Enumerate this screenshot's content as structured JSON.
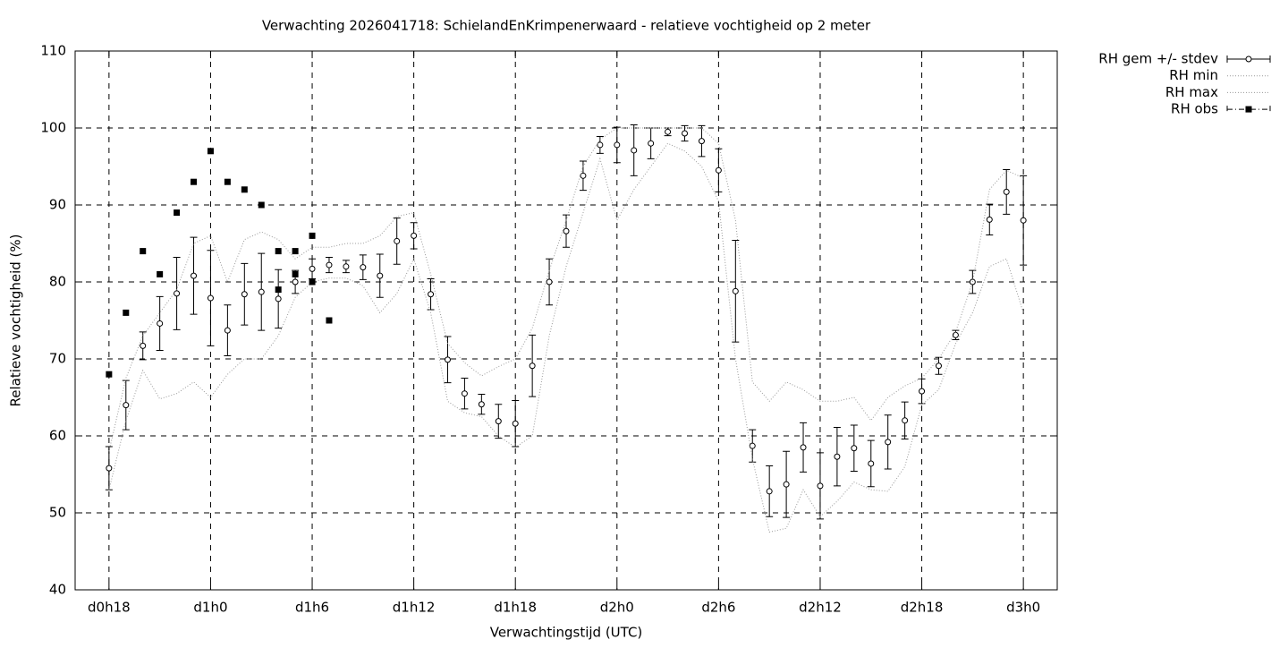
{
  "chart_data": {
    "type": "line",
    "title": "Verwachting 2026041718: SchielandEnKrimpenerwaard - relatieve vochtigheid op 2 meter",
    "x_label": "Verwachtingstijd (UTC)",
    "y_label": "Relatieve vochtigheid (%)",
    "xlim": [
      16,
      74
    ],
    "xticks": [
      {
        "value": 18,
        "label": "d0h18"
      },
      {
        "value": 24,
        "label": "d1h0"
      },
      {
        "value": 30,
        "label": "d1h6"
      },
      {
        "value": 36,
        "label": "d1h12"
      },
      {
        "value": 42,
        "label": "d1h18"
      },
      {
        "value": 48,
        "label": "d2h0"
      },
      {
        "value": 54,
        "label": "d2h6"
      },
      {
        "value": 60,
        "label": "d2h12"
      },
      {
        "value": 66,
        "label": "d2h18"
      },
      {
        "value": 72,
        "label": "d3h0"
      }
    ],
    "ylim": [
      40,
      110
    ],
    "yticks": [
      40,
      50,
      60,
      70,
      80,
      90,
      100,
      110
    ],
    "grid": true,
    "legend": "outside-top-right",
    "series": [
      {
        "name": "RH gem +/- stdev",
        "style": "errorbars",
        "color": "#000000",
        "x": [
          18,
          19,
          20,
          21,
          22,
          23,
          24,
          25,
          26,
          27,
          28,
          29,
          30,
          31,
          32,
          33,
          34,
          35,
          36,
          37,
          38,
          39,
          40,
          41,
          42,
          43,
          44,
          45,
          46,
          47,
          48,
          49,
          50,
          51,
          52,
          53,
          54,
          55,
          56,
          57,
          58,
          59,
          60,
          61,
          62,
          63,
          64,
          65,
          66,
          67,
          68,
          69,
          70,
          71,
          72
        ],
        "values": [
          55.8,
          64.0,
          71.7,
          74.6,
          78.5,
          80.8,
          77.9,
          73.7,
          78.4,
          78.7,
          77.8,
          80.0,
          81.7,
          82.2,
          82.0,
          81.9,
          80.8,
          85.3,
          86.0,
          78.4,
          69.9,
          65.5,
          64.1,
          61.9,
          61.6,
          69.1,
          80.0,
          86.6,
          93.8,
          97.8,
          97.8,
          97.1,
          98.0,
          99.5,
          99.3,
          98.3,
          94.5,
          78.8,
          58.7,
          52.8,
          53.7,
          58.5,
          53.5,
          57.3,
          58.4,
          56.4,
          59.2,
          62.0,
          65.8,
          69.1,
          73.1,
          80.0,
          88.1,
          91.7,
          88.0
        ],
        "errors": [
          2.8,
          3.2,
          1.8,
          3.5,
          4.7,
          5.0,
          6.2,
          3.3,
          4.0,
          5.0,
          3.8,
          1.5,
          1.3,
          1.0,
          0.8,
          1.6,
          2.8,
          3.0,
          1.7,
          2.0,
          3.0,
          2.0,
          1.3,
          2.2,
          3.0,
          4.0,
          3.0,
          2.1,
          1.9,
          1.1,
          2.3,
          3.3,
          2.0,
          0.5,
          1.0,
          2.0,
          2.8,
          6.6,
          2.1,
          3.3,
          4.3,
          3.2,
          4.3,
          3.8,
          3.0,
          3.0,
          3.5,
          2.4,
          1.6,
          1.1,
          0.6,
          1.5,
          2.0,
          2.9,
          5.8
        ]
      },
      {
        "name": "RH min",
        "style": "dotted",
        "color": "#999999",
        "x": [
          18,
          19,
          20,
          21,
          22,
          23,
          24,
          25,
          26,
          27,
          28,
          29,
          30,
          31,
          32,
          33,
          34,
          35,
          36,
          37,
          38,
          39,
          40,
          41,
          42,
          43,
          44,
          45,
          46,
          47,
          48,
          49,
          50,
          51,
          52,
          53,
          54,
          55,
          56,
          57,
          58,
          59,
          60,
          61,
          62,
          63,
          64,
          65,
          66,
          67,
          68,
          69,
          70,
          71,
          72
        ],
        "values": [
          53,
          62,
          68.5,
          64.8,
          65.5,
          67,
          65,
          68,
          70,
          70,
          73,
          78,
          80,
          80.5,
          80.5,
          79.5,
          76,
          78.5,
          83,
          76,
          64.5,
          63,
          62.5,
          60,
          58.5,
          60,
          73,
          82,
          89,
          96,
          88,
          92,
          95,
          98,
          97,
          95,
          90.5,
          70,
          57,
          47.5,
          48,
          53,
          49.5,
          51.5,
          54,
          53,
          52.8,
          56,
          64,
          66,
          72,
          76,
          82,
          83,
          76
        ]
      },
      {
        "name": "RH max",
        "style": "dotted",
        "color": "#999999",
        "x": [
          18,
          19,
          20,
          21,
          22,
          23,
          24,
          25,
          26,
          27,
          28,
          29,
          30,
          31,
          32,
          33,
          34,
          35,
          36,
          37,
          38,
          39,
          40,
          41,
          42,
          43,
          44,
          45,
          46,
          47,
          48,
          49,
          50,
          51,
          52,
          53,
          54,
          55,
          56,
          57,
          58,
          59,
          60,
          61,
          62,
          63,
          64,
          65,
          66,
          67,
          68,
          69,
          70,
          71,
          72
        ],
        "values": [
          58,
          67.5,
          73,
          76,
          79,
          85,
          86,
          80,
          85.5,
          86.5,
          85.5,
          83,
          84.5,
          84.5,
          85,
          85,
          86,
          88.5,
          89,
          81,
          72,
          69.5,
          67.8,
          69,
          70,
          74,
          81.5,
          88,
          95,
          98.5,
          100,
          100,
          100,
          100,
          100,
          100,
          98,
          88,
          67,
          64.5,
          67,
          66,
          64.5,
          64.5,
          65,
          62,
          65,
          66.5,
          67.5,
          70,
          73.5,
          80,
          92,
          94.5,
          93.5
        ]
      },
      {
        "name": "RH obs",
        "style": "squares",
        "color": "#000000",
        "x": [
          18,
          19,
          20,
          21,
          22,
          23,
          24,
          25,
          26,
          27,
          28,
          28,
          29,
          29,
          30,
          30,
          31
        ],
        "values": [
          68,
          76,
          84,
          81,
          89,
          93,
          97,
          93,
          92,
          90,
          84,
          79,
          84,
          81,
          86,
          80,
          75
        ]
      }
    ]
  }
}
